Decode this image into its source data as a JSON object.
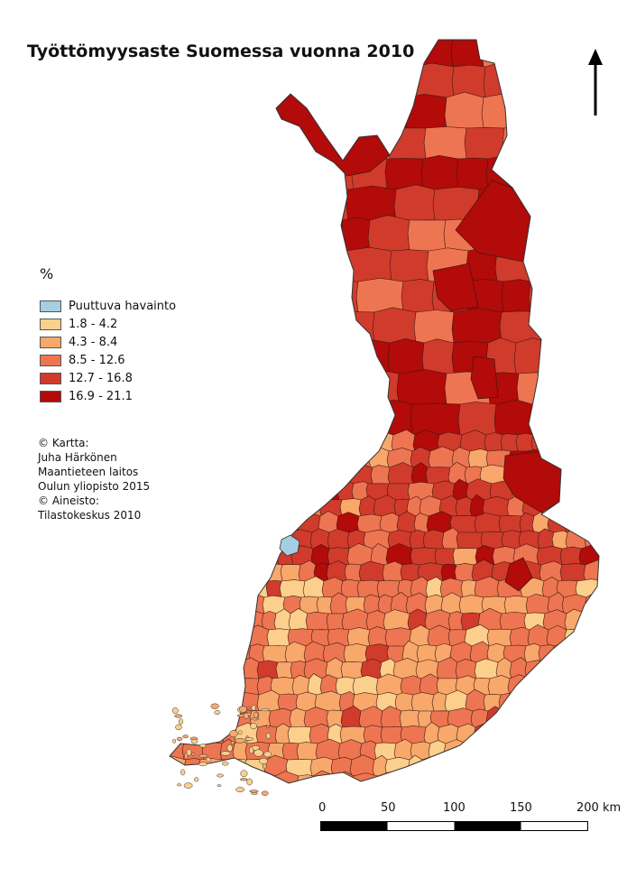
{
  "title": "Työttömyysaste Suomessa vuonna 2010",
  "legend": {
    "unit": "%",
    "items": [
      {
        "label": "Puuttuva havainto",
        "color": "#a6cee3"
      },
      {
        "label": "1.8 - 4.2",
        "color": "#fdcf8c"
      },
      {
        "label": "4.3 - 8.4",
        "color": "#f8a86b"
      },
      {
        "label": "8.5 - 12.6",
        "color": "#ee7551"
      },
      {
        "label": "12.7 - 16.8",
        "color": "#d13b2c"
      },
      {
        "label": "16.9 - 21.1",
        "color": "#b30a0a"
      }
    ]
  },
  "credits": [
    "© Kartta:",
    "Juha Härkönen",
    "Maantieteen laitos",
    "Oulun yliopisto 2015",
    "© Aineisto:",
    "Tilastokeskus 2010"
  ],
  "scalebar": {
    "labels": [
      "0",
      "50",
      "100",
      "150",
      "200 km"
    ]
  },
  "north_arrow_icon": "north-arrow-icon"
}
